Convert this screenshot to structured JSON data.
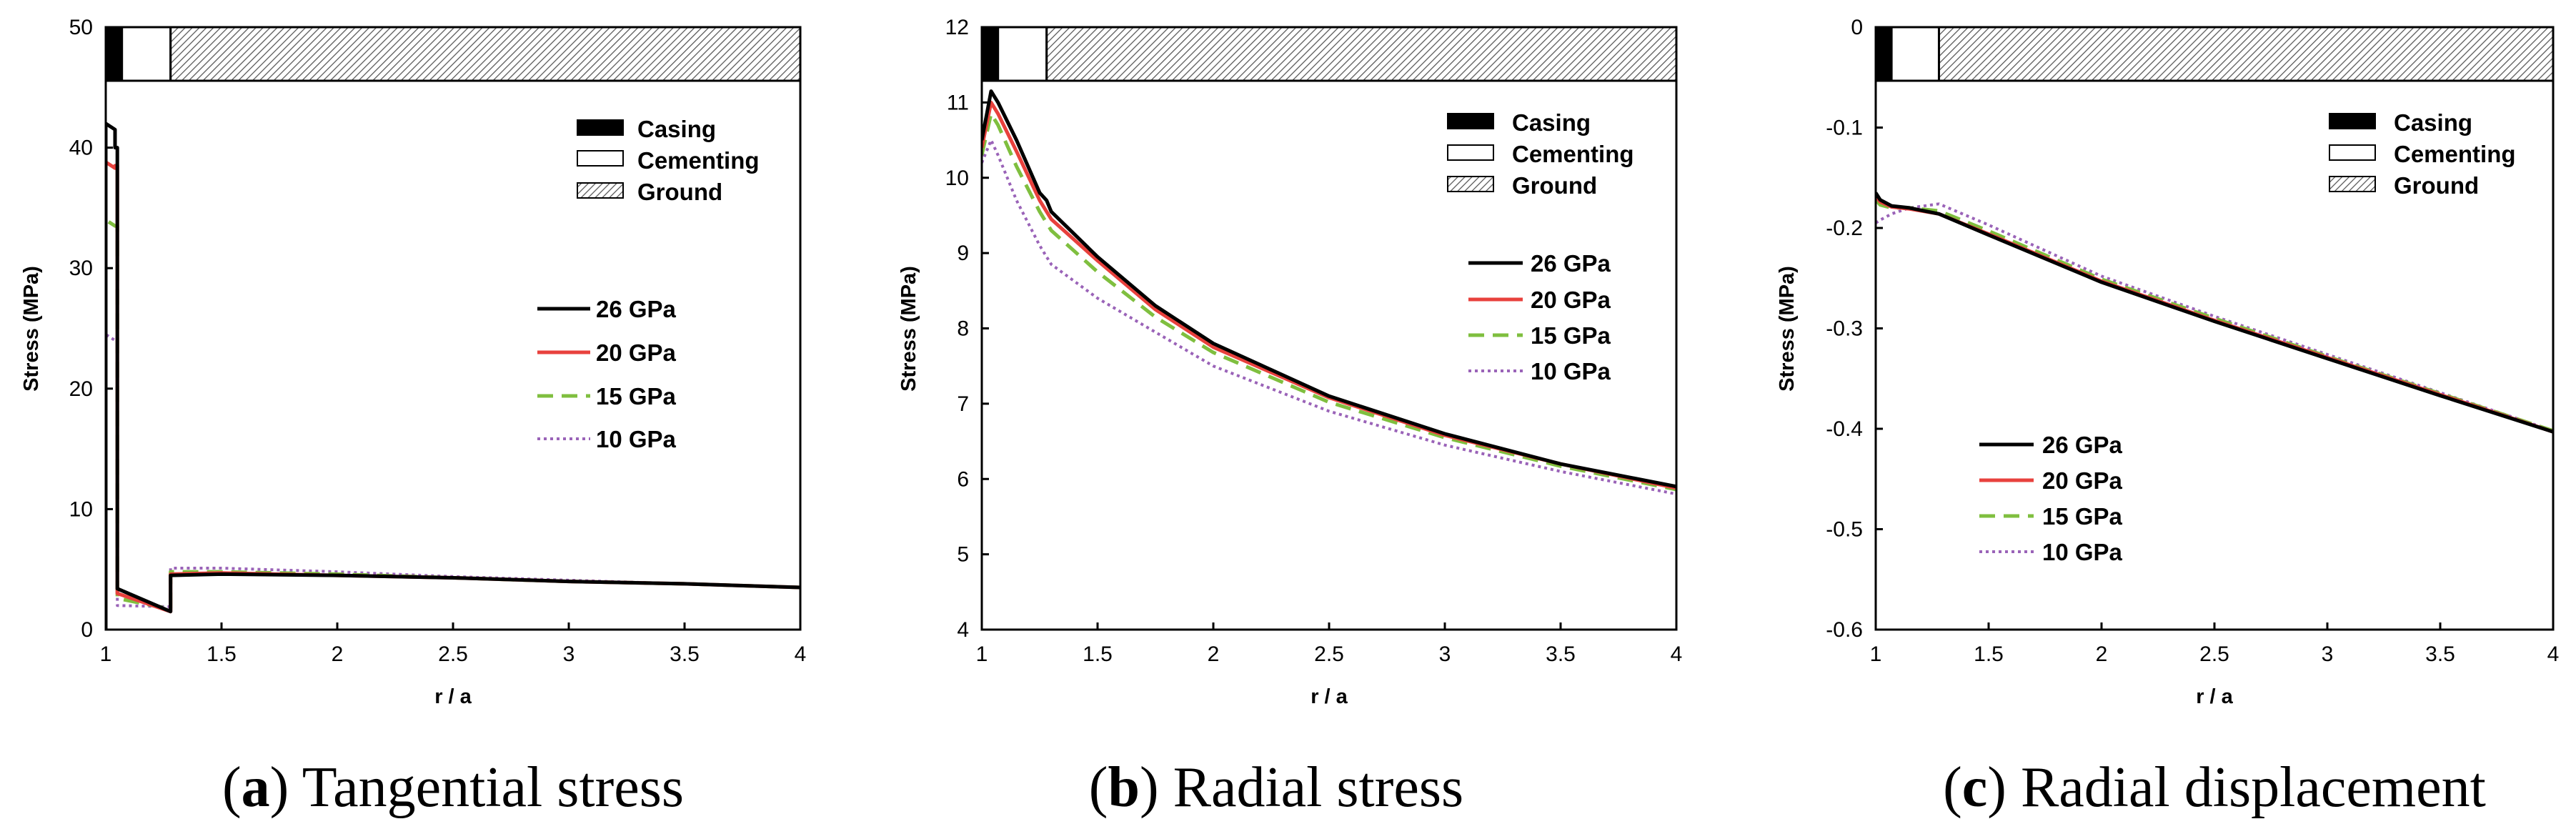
{
  "chart_data": [
    {
      "type": "line",
      "panel": "a",
      "caption_letter": "a",
      "caption": "Tangential stress",
      "title": "",
      "xlabel": "r / a",
      "ylabel": "Stress (MPa)",
      "xlim": [
        1,
        4
      ],
      "ylim": [
        0,
        50
      ],
      "xticks": [
        1,
        1.5,
        2,
        2.5,
        3,
        3.5,
        4
      ],
      "xtick_labels": [
        "1",
        "1.5",
        "2",
        "2.5",
        "3",
        "3.5",
        "4"
      ],
      "yticks": [
        0,
        10,
        20,
        30,
        40,
        50
      ],
      "ytick_labels": [
        "0",
        "10",
        "20",
        "30",
        "40",
        "50"
      ],
      "materials": [
        {
          "name": "Casing",
          "from": 1.0,
          "to": 1.07
        },
        {
          "name": "Cementing",
          "from": 1.07,
          "to": 1.28
        },
        {
          "name": "Ground",
          "from": 1.28,
          "to": 4.0
        }
      ],
      "series": [
        {
          "name": "26 GPa",
          "x": [
            1.0,
            1.0,
            1.04,
            1.04,
            1.05,
            1.05,
            1.28,
            1.28,
            1.5,
            2.0,
            2.5,
            3.0,
            3.5,
            4.0
          ],
          "y": [
            0.0,
            42.0,
            41.5,
            40.0,
            40.0,
            3.4,
            1.5,
            4.5,
            4.6,
            4.5,
            4.3,
            4.0,
            3.8,
            3.5
          ]
        },
        {
          "name": "20 GPa",
          "x": [
            1.0,
            1.0,
            1.04,
            1.04,
            1.05,
            1.05,
            1.28,
            1.28,
            1.5,
            2.0,
            2.5,
            3.0,
            3.5,
            4.0
          ],
          "y": [
            0.0,
            38.8,
            38.3,
            38.5,
            38.5,
            3.0,
            1.5,
            4.6,
            4.7,
            4.5,
            4.3,
            4.0,
            3.8,
            3.5
          ]
        },
        {
          "name": "15 GPa",
          "x": [
            1.0,
            1.0,
            1.04,
            1.04,
            1.05,
            1.05,
            1.28,
            1.28,
            1.5,
            2.0,
            2.5,
            3.0,
            3.5,
            4.0
          ],
          "y": [
            0.0,
            34.0,
            33.5,
            33.5,
            33.5,
            2.6,
            1.7,
            4.8,
            4.8,
            4.6,
            4.3,
            4.0,
            3.8,
            3.5
          ]
        },
        {
          "name": "10 GPa",
          "x": [
            1.0,
            1.0,
            1.04,
            1.04,
            1.05,
            1.05,
            1.28,
            1.28,
            1.5,
            2.0,
            2.5,
            3.0,
            3.5,
            4.0
          ],
          "y": [
            0.0,
            24.5,
            24.0,
            24.0,
            24.0,
            2.0,
            1.9,
            5.1,
            5.1,
            4.8,
            4.4,
            4.1,
            3.8,
            3.5
          ]
        }
      ],
      "material_legend_placement": "top-right",
      "series_legend_placement": "center"
    },
    {
      "type": "line",
      "panel": "b",
      "caption_letter": "b",
      "caption": "Radial stress",
      "title": "",
      "xlabel": "r / a",
      "ylabel": "Stress (MPa)",
      "xlim": [
        1,
        4
      ],
      "ylim": [
        4,
        12
      ],
      "xticks": [
        1,
        1.5,
        2,
        2.5,
        3,
        3.5,
        4
      ],
      "xtick_labels": [
        "1",
        "1.5",
        "2",
        "2.5",
        "3",
        "3.5",
        "4"
      ],
      "yticks": [
        4,
        5,
        6,
        7,
        8,
        9,
        10,
        11,
        12
      ],
      "ytick_labels": [
        "4",
        "5",
        "6",
        "7",
        "8",
        "9",
        "10",
        "11",
        "12"
      ],
      "materials": [
        {
          "name": "Casing",
          "from": 1.0,
          "to": 1.07
        },
        {
          "name": "Cementing",
          "from": 1.07,
          "to": 1.28
        },
        {
          "name": "Ground",
          "from": 1.28,
          "to": 4.0
        }
      ],
      "series": [
        {
          "name": "26 GPa",
          "x": [
            1.0,
            1.04,
            1.07,
            1.15,
            1.25,
            1.28,
            1.3,
            1.5,
            1.75,
            2.0,
            2.5,
            3.0,
            3.5,
            4.0
          ],
          "y": [
            10.5,
            11.15,
            11.0,
            10.5,
            9.8,
            9.7,
            9.55,
            8.95,
            8.3,
            7.8,
            7.1,
            6.6,
            6.2,
            5.9
          ]
        },
        {
          "name": "20 GPa",
          "x": [
            1.0,
            1.04,
            1.07,
            1.15,
            1.25,
            1.28,
            1.3,
            1.5,
            1.75,
            2.0,
            2.5,
            3.0,
            3.5,
            4.0
          ],
          "y": [
            10.4,
            11.0,
            10.85,
            10.35,
            9.7,
            9.55,
            9.45,
            8.9,
            8.25,
            7.75,
            7.08,
            6.58,
            6.2,
            5.88
          ]
        },
        {
          "name": "15 GPa",
          "x": [
            1.0,
            1.04,
            1.07,
            1.15,
            1.25,
            1.28,
            1.3,
            1.5,
            1.75,
            2.0,
            2.5,
            3.0,
            3.5,
            4.0
          ],
          "y": [
            10.3,
            10.85,
            10.7,
            10.15,
            9.55,
            9.4,
            9.3,
            8.75,
            8.15,
            7.68,
            7.02,
            6.55,
            6.17,
            5.86
          ]
        },
        {
          "name": "10 GPa",
          "x": [
            1.0,
            1.04,
            1.07,
            1.15,
            1.25,
            1.28,
            1.3,
            1.5,
            1.75,
            2.0,
            2.5,
            3.0,
            3.5,
            4.0
          ],
          "y": [
            10.2,
            10.5,
            10.3,
            9.7,
            9.1,
            8.95,
            8.85,
            8.4,
            7.95,
            7.5,
            6.9,
            6.45,
            6.1,
            5.8
          ]
        }
      ],
      "material_legend_placement": "top-right",
      "series_legend_placement": "right"
    },
    {
      "type": "line",
      "panel": "c",
      "caption_letter": "c",
      "caption": "Radial displacement",
      "title": "",
      "xlabel": "r / a",
      "ylabel": "Stress (MPa)",
      "xlim": [
        1,
        4
      ],
      "ylim": [
        -0.6,
        0
      ],
      "xticks": [
        1,
        1.5,
        2,
        2.5,
        3,
        3.5,
        4
      ],
      "xtick_labels": [
        "1",
        "1.5",
        "2",
        "2.5",
        "3",
        "3.5",
        "4"
      ],
      "yticks": [
        -0.6,
        -0.5,
        -0.4,
        -0.3,
        -0.2,
        -0.1,
        0
      ],
      "ytick_labels": [
        "-0.6",
        "-0.5",
        "-0.4",
        "-0.3",
        "-0.2",
        "-0.1",
        "0"
      ],
      "materials": [
        {
          "name": "Casing",
          "from": 1.0,
          "to": 1.07
        },
        {
          "name": "Cementing",
          "from": 1.07,
          "to": 1.28
        },
        {
          "name": "Ground",
          "from": 1.28,
          "to": 4.0
        }
      ],
      "series": [
        {
          "name": "26 GPa",
          "x": [
            1.0,
            1.02,
            1.07,
            1.15,
            1.28,
            1.5,
            2.0,
            2.5,
            3.0,
            3.5,
            4.0
          ],
          "y": [
            -0.165,
            -0.172,
            -0.178,
            -0.18,
            -0.186,
            -0.207,
            -0.254,
            -0.293,
            -0.33,
            -0.367,
            -0.403
          ]
        },
        {
          "name": "20 GPa",
          "x": [
            1.0,
            1.02,
            1.07,
            1.15,
            1.28,
            1.5,
            2.0,
            2.5,
            3.0,
            3.5,
            4.0
          ],
          "y": [
            -0.168,
            -0.174,
            -0.179,
            -0.181,
            -0.186,
            -0.206,
            -0.253,
            -0.292,
            -0.329,
            -0.366,
            -0.403
          ]
        },
        {
          "name": "15 GPa",
          "x": [
            1.0,
            1.02,
            1.07,
            1.15,
            1.28,
            1.5,
            2.0,
            2.5,
            3.0,
            3.5,
            4.0
          ],
          "y": [
            -0.172,
            -0.177,
            -0.18,
            -0.18,
            -0.183,
            -0.203,
            -0.251,
            -0.29,
            -0.328,
            -0.365,
            -0.402
          ]
        },
        {
          "name": "10 GPa",
          "x": [
            1.0,
            1.02,
            1.07,
            1.15,
            1.28,
            1.5,
            2.0,
            2.5,
            3.0,
            3.5,
            4.0
          ],
          "y": [
            -0.195,
            -0.192,
            -0.186,
            -0.18,
            -0.176,
            -0.197,
            -0.248,
            -0.288,
            -0.326,
            -0.364,
            -0.402
          ]
        }
      ],
      "material_legend_placement": "top-right",
      "series_legend_placement": "bottom-left"
    }
  ],
  "styles": {
    "26 GPa": {
      "color": "#000000",
      "dash": ""
    },
    "20 GPa": {
      "color": "#e8413d",
      "dash": ""
    },
    "15 GPa": {
      "color": "#7fbf3f",
      "dash": "22 12"
    },
    "10 GPa": {
      "color": "#9a63b8",
      "dash": "4 5"
    }
  },
  "material_styles": {
    "Casing": "solid-black",
    "Cementing": "white",
    "Ground": "hatched"
  }
}
